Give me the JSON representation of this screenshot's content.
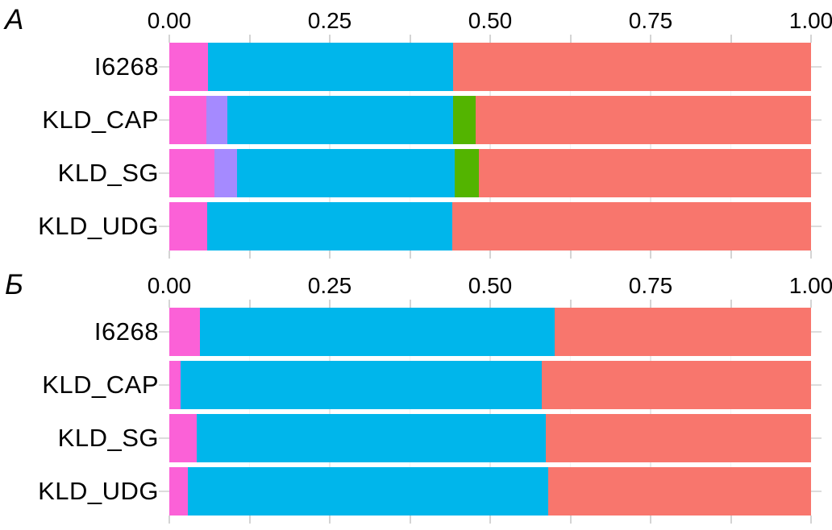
{
  "figure": {
    "background": "#ffffff",
    "title": "",
    "legend": null
  },
  "style": {
    "tick_color": "#d4d4d4",
    "category_tick_color": "#dcdcdc",
    "grid_major_color": "#e9e9e9",
    "grid_minor_color": "#f4f4f4",
    "text_color": "#000000"
  },
  "chart_data": [
    {
      "type": "bar",
      "panel_label": "A",
      "orientation": "horizontal",
      "stacked": true,
      "grid": "faint vertical lines visible in gaps between bars",
      "categories": [
        "I6268",
        "KLD_CAP",
        "KLD_SG",
        "KLD_UDG"
      ],
      "x_tick_labels": [
        "0.00",
        "0.25",
        "0.50",
        "0.75",
        "1.00"
      ],
      "xlim": [
        0,
        1
      ],
      "minor_tick_step": 0.125,
      "series": [
        {
          "name": "magenta-segment",
          "color": "#FB61D7",
          "values": [
            0.06,
            0.058,
            0.07,
            0.059
          ]
        },
        {
          "name": "purple-segment",
          "color": "#A58AFF",
          "values": [
            0,
            0.033,
            0.035,
            0
          ]
        },
        {
          "name": "cyan-segment",
          "color": "#00B6EB",
          "values": [
            0.382,
            0.351,
            0.34,
            0.382
          ]
        },
        {
          "name": "green-segment",
          "color": "#53B400",
          "values": [
            0,
            0.036,
            0.038,
            0
          ]
        },
        {
          "name": "salmon-segment",
          "color": "#F8766D",
          "values": [
            0.558,
            0.522,
            0.517,
            0.559
          ]
        }
      ]
    },
    {
      "type": "bar",
      "panel_label": "Б",
      "orientation": "horizontal",
      "stacked": true,
      "grid": "faint vertical lines visible in gaps between bars",
      "categories": [
        "I6268",
        "KLD_CAP",
        "KLD_SG",
        "KLD_UDG"
      ],
      "x_tick_labels": [
        "0.00",
        "0.25",
        "0.50",
        "0.75",
        "1.00"
      ],
      "xlim": [
        0,
        1
      ],
      "minor_tick_step": 0.125,
      "series": [
        {
          "name": "magenta-segment",
          "color": "#FB61D7",
          "values": [
            0.048,
            0.018,
            0.043,
            0.029
          ]
        },
        {
          "name": "purple-segment",
          "color": "#A58AFF",
          "values": [
            0,
            0,
            0,
            0
          ]
        },
        {
          "name": "cyan-segment",
          "color": "#00B6EB",
          "values": [
            0.552,
            0.562,
            0.544,
            0.561
          ]
        },
        {
          "name": "green-segment",
          "color": "#53B400",
          "values": [
            0,
            0,
            0,
            0
          ]
        },
        {
          "name": "salmon-segment",
          "color": "#F8766D",
          "values": [
            0.4,
            0.42,
            0.413,
            0.41
          ]
        }
      ]
    }
  ]
}
